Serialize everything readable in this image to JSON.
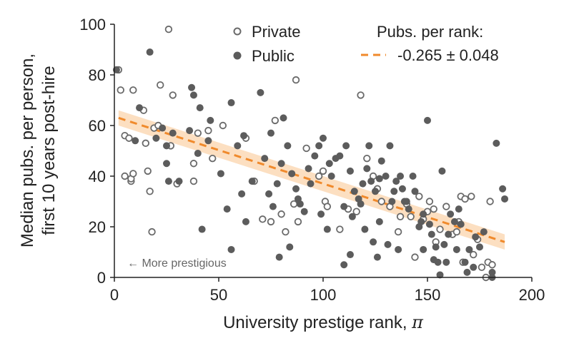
{
  "chart_data": {
    "type": "scatter",
    "xlabel_main": "University prestige rank, ",
    "xlabel_symbol": "π",
    "ylabel_line1": "Median pubs. per person,",
    "ylabel_line2": "first 10 years post-hire",
    "xlim": [
      0,
      200
    ],
    "ylim": [
      0,
      100
    ],
    "xticks": [
      "0",
      "50",
      "100",
      "150",
      "200"
    ],
    "yticks": [
      "0",
      "20",
      "40",
      "60",
      "80",
      "100"
    ],
    "annotation": "← More prestigious",
    "legend": {
      "private": "Private",
      "public": "Public",
      "fit_title": "Pubs. per rank:",
      "fit_label": "-0.265 ± 0.048"
    },
    "colors": {
      "public": "#5c5c5c",
      "private_edge": "#6a6a6a",
      "fit_line": "#f08a2c",
      "fit_band": "#fbd9b6"
    },
    "fit": {
      "slope": -0.265,
      "slope_err": 0.048,
      "x_start": 2,
      "y_start": 63,
      "x_end": 187,
      "y_end": 14,
      "band_half_width": 3
    },
    "series": [
      {
        "name": "Private",
        "marker": "hollow",
        "points": [
          [
            2,
            82
          ],
          [
            3,
            74
          ],
          [
            5,
            40
          ],
          [
            5,
            56
          ],
          [
            7,
            55
          ],
          [
            8,
            38
          ],
          [
            8,
            39
          ],
          [
            9,
            74
          ],
          [
            9,
            41
          ],
          [
            14,
            66
          ],
          [
            15,
            53
          ],
          [
            16,
            42
          ],
          [
            17,
            34
          ],
          [
            18,
            18
          ],
          [
            19,
            59
          ],
          [
            21,
            60
          ],
          [
            22,
            76
          ],
          [
            26,
            98
          ],
          [
            27,
            52
          ],
          [
            28,
            72
          ],
          [
            30,
            37
          ],
          [
            38,
            38
          ],
          [
            38,
            45
          ],
          [
            40,
            57
          ],
          [
            45,
            58
          ],
          [
            47,
            47
          ],
          [
            52,
            60
          ],
          [
            63,
            55
          ],
          [
            67,
            38
          ],
          [
            71,
            23
          ],
          [
            75,
            22
          ],
          [
            77,
            62
          ],
          [
            80,
            25
          ],
          [
            82,
            18
          ],
          [
            86,
            29
          ],
          [
            87,
            78
          ],
          [
            88,
            22
          ],
          [
            92,
            51
          ],
          [
            98,
            40
          ],
          [
            100,
            42
          ],
          [
            101,
            30
          ],
          [
            102,
            28
          ],
          [
            108,
            19
          ],
          [
            112,
            27
          ],
          [
            116,
            26
          ],
          [
            118,
            72
          ],
          [
            121,
            47
          ],
          [
            124,
            40
          ],
          [
            126,
            35
          ],
          [
            128,
            30
          ],
          [
            132,
            28
          ],
          [
            136,
            18
          ],
          [
            137,
            24
          ],
          [
            140,
            29
          ],
          [
            142,
            24
          ],
          [
            144,
            8
          ],
          [
            146,
            32
          ],
          [
            148,
            23
          ],
          [
            150,
            26
          ],
          [
            151,
            30
          ],
          [
            153,
            27
          ],
          [
            154,
            14
          ],
          [
            156,
            19
          ],
          [
            159,
            28
          ],
          [
            162,
            17
          ],
          [
            164,
            18
          ],
          [
            165,
            22
          ],
          [
            166,
            32
          ],
          [
            167,
            6
          ],
          [
            168,
            31
          ],
          [
            171,
            32
          ],
          [
            172,
            9
          ],
          [
            174,
            15
          ],
          [
            176,
            4
          ],
          [
            178,
            0
          ],
          [
            179,
            6
          ],
          [
            180,
            30
          ],
          [
            181,
            5
          ]
        ]
      },
      {
        "name": "Public",
        "marker": "filled",
        "points": [
          [
            1,
            82
          ],
          [
            10,
            54
          ],
          [
            12,
            67
          ],
          [
            17,
            89
          ],
          [
            20,
            55
          ],
          [
            23,
            59
          ],
          [
            25,
            45
          ],
          [
            25,
            52
          ],
          [
            26,
            38
          ],
          [
            28,
            57
          ],
          [
            31,
            38
          ],
          [
            36,
            58
          ],
          [
            37,
            75
          ],
          [
            38,
            72
          ],
          [
            40,
            49
          ],
          [
            41,
            67
          ],
          [
            42,
            19
          ],
          [
            45,
            54
          ],
          [
            46,
            62
          ],
          [
            51,
            41
          ],
          [
            54,
            27
          ],
          [
            56,
            11
          ],
          [
            56,
            69
          ],
          [
            59,
            52
          ],
          [
            61,
            33
          ],
          [
            62,
            56
          ],
          [
            63,
            22
          ],
          [
            66,
            38
          ],
          [
            70,
            73
          ],
          [
            72,
            47
          ],
          [
            74,
            33
          ],
          [
            75,
            57
          ],
          [
            76,
            28
          ],
          [
            78,
            37
          ],
          [
            79,
            8
          ],
          [
            80,
            45
          ],
          [
            81,
            63
          ],
          [
            83,
            52
          ],
          [
            84,
            12
          ],
          [
            85,
            41
          ],
          [
            87,
            35
          ],
          [
            88,
            31
          ],
          [
            89,
            29
          ],
          [
            91,
            26
          ],
          [
            93,
            43
          ],
          [
            94,
            37
          ],
          [
            96,
            48
          ],
          [
            98,
            52
          ],
          [
            99,
            25
          ],
          [
            100,
            55
          ],
          [
            102,
            19
          ],
          [
            103,
            45
          ],
          [
            104,
            40
          ],
          [
            106,
            47
          ],
          [
            108,
            48
          ],
          [
            110,
            5
          ],
          [
            110,
            28
          ],
          [
            111,
            52
          ],
          [
            113,
            42
          ],
          [
            113,
            9
          ],
          [
            114,
            24
          ],
          [
            115,
            34
          ],
          [
            117,
            31
          ],
          [
            118,
            29
          ],
          [
            119,
            37
          ],
          [
            120,
            19
          ],
          [
            121,
            43
          ],
          [
            122,
            52
          ],
          [
            123,
            38
          ],
          [
            124,
            14
          ],
          [
            125,
            34
          ],
          [
            126,
            8
          ],
          [
            127,
            22
          ],
          [
            127,
            39
          ],
          [
            128,
            46
          ],
          [
            130,
            40
          ],
          [
            131,
            13
          ],
          [
            132,
            52
          ],
          [
            133,
            30
          ],
          [
            134,
            34
          ],
          [
            135,
            38
          ],
          [
            136,
            11
          ],
          [
            137,
            40
          ],
          [
            138,
            35
          ],
          [
            139,
            30
          ],
          [
            140,
            30
          ],
          [
            141,
            27
          ],
          [
            143,
            40
          ],
          [
            144,
            34
          ],
          [
            146,
            20
          ],
          [
            147,
            22
          ],
          [
            148,
            25
          ],
          [
            148,
            11
          ],
          [
            150,
            62
          ],
          [
            151,
            21
          ],
          [
            152,
            17
          ],
          [
            153,
            7
          ],
          [
            154,
            12
          ],
          [
            155,
            6
          ],
          [
            156,
            1
          ],
          [
            157,
            42
          ],
          [
            158,
            13
          ],
          [
            159,
            6
          ],
          [
            160,
            17
          ],
          [
            161,
            25
          ],
          [
            163,
            22
          ],
          [
            164,
            11
          ],
          [
            165,
            27
          ],
          [
            166,
            21
          ],
          [
            168,
            6
          ],
          [
            169,
            2
          ],
          [
            170,
            11
          ],
          [
            172,
            4
          ],
          [
            173,
            16
          ],
          [
            175,
            12
          ],
          [
            177,
            18
          ],
          [
            181,
            2
          ],
          [
            181,
            0
          ],
          [
            183,
            53
          ],
          [
            186,
            35
          ],
          [
            187,
            31
          ]
        ]
      }
    ]
  }
}
